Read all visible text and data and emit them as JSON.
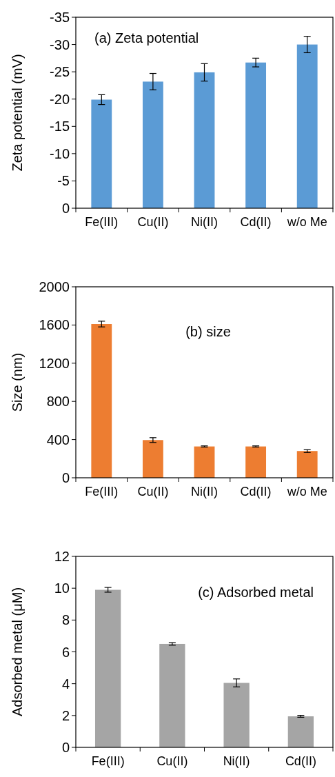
{
  "chart_data": [
    {
      "type": "bar",
      "categories": [
        "Fe(III)",
        "Cu(II)",
        "Ni(II)",
        "Cd(II)",
        "w/o Me"
      ],
      "values": [
        -19.9,
        -23.2,
        -24.9,
        -26.7,
        -30.0
      ],
      "errors": [
        0.9,
        1.5,
        1.6,
        0.8,
        1.5
      ],
      "color": "#5b9bd5",
      "ylabel": "Zeta potential (mV)",
      "ylim": [
        0,
        -35
      ],
      "yticks": [
        0,
        -5,
        -10,
        -15,
        -20,
        -25,
        -30,
        -35
      ],
      "annotations": [
        "(a) Zeta potential"
      ]
    },
    {
      "type": "bar",
      "categories": [
        "Fe(III)",
        "Cu(II)",
        "Ni(II)",
        "Cd(II)",
        "w/o Me"
      ],
      "values": [
        1610,
        395,
        328,
        328,
        280
      ],
      "errors": [
        30,
        25,
        6,
        6,
        15
      ],
      "color": "#ed7d31",
      "ylabel": "Size (nm)",
      "ylim": [
        0,
        2000
      ],
      "yticks": [
        0,
        400,
        800,
        1200,
        1600,
        2000
      ],
      "annotations": [
        "(b) size"
      ]
    },
    {
      "type": "bar",
      "categories": [
        "Fe(III)",
        "Cu(II)",
        "Ni(II)",
        "Cd(II)"
      ],
      "values": [
        9.9,
        6.5,
        4.05,
        1.95
      ],
      "errors": [
        0.15,
        0.08,
        0.25,
        0.06
      ],
      "color": "#a5a5a5",
      "ylabel": "Adsorbed metal (μM)",
      "ylim": [
        0,
        12
      ],
      "yticks": [
        0,
        2,
        4,
        6,
        8,
        10,
        12
      ],
      "annotations": [
        "(c) Adsorbed metal"
      ]
    }
  ]
}
